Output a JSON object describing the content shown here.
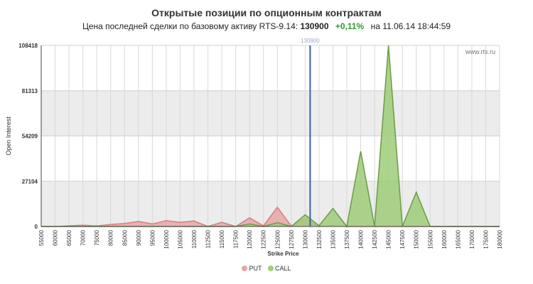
{
  "header": {
    "title": "Открытые позиции по опционным контрактам",
    "subtitle_prefix": "Цена последней сделки по базовому активу RTS-9.14:",
    "price": "130900",
    "change": "+0,11%",
    "date_text": "на 11.06.14 18:44:59"
  },
  "watermark": "www.rts.ru",
  "colors": {
    "put_fill": "#e8a7a7",
    "put_line": "#d88080",
    "call_fill": "#9fcc79",
    "call_line": "#6ea04a",
    "price_line": "#3b5fb5",
    "band": "#ececec"
  },
  "chart_data": {
    "type": "area",
    "xlabel": "Strike Price",
    "ylabel": "Open Interest",
    "ylim": [
      0,
      108418
    ],
    "y_ticks": [
      "0",
      "27104",
      "54209",
      "81313",
      "108418"
    ],
    "x": [
      "55000",
      "60000",
      "65000",
      "70000",
      "75000",
      "80000",
      "85000",
      "90000",
      "95000",
      "100000",
      "105000",
      "110000",
      "112500",
      "115000",
      "117500",
      "120000",
      "122500",
      "125000",
      "127500",
      "130000",
      "132500",
      "135000",
      "137500",
      "140000",
      "142500",
      "145000",
      "147500",
      "150000",
      "155000",
      "160000",
      "165000",
      "170000",
      "175000",
      "180000"
    ],
    "current_price": 130900,
    "current_price_label": "130900",
    "series": [
      {
        "name": "PUT",
        "values": [
          0,
          0,
          400,
          800,
          300,
          1200,
          1800,
          3000,
          1500,
          3500,
          2500,
          3300,
          0,
          2500,
          0,
          5200,
          400,
          11500,
          300,
          4500,
          0,
          500,
          0,
          0,
          0,
          0,
          0,
          0,
          0,
          0,
          0,
          0,
          0,
          0
        ]
      },
      {
        "name": "CALL",
        "values": [
          0,
          0,
          0,
          0,
          0,
          0,
          0,
          0,
          0,
          0,
          0,
          0,
          0,
          0,
          0,
          1500,
          0,
          2300,
          0,
          7000,
          500,
          10800,
          0,
          45000,
          0,
          108418,
          0,
          20500,
          0,
          0,
          0,
          0,
          0,
          0
        ]
      }
    ],
    "grid": true,
    "legend_position": "bottom-center"
  }
}
